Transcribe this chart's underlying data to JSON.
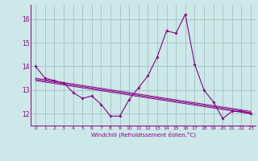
{
  "xlabel": "Windchill (Refroidissement éolien,°C)",
  "x_hours": [
    0,
    1,
    2,
    3,
    4,
    5,
    6,
    7,
    8,
    9,
    10,
    11,
    12,
    13,
    14,
    15,
    16,
    17,
    18,
    19,
    20,
    21,
    22,
    23
  ],
  "main_line": [
    14.0,
    13.5,
    13.4,
    13.3,
    12.9,
    12.65,
    12.75,
    12.4,
    11.9,
    11.9,
    12.6,
    13.1,
    13.6,
    14.4,
    15.5,
    15.4,
    16.2,
    14.1,
    13.0,
    12.5,
    11.8,
    12.1,
    12.1,
    12.0
  ],
  "trend_lines": [
    [
      13.5,
      12.1
    ],
    [
      13.45,
      12.05
    ],
    [
      13.4,
      12.0
    ]
  ],
  "ylim": [
    11.5,
    16.6
  ],
  "yticks": [
    12,
    13,
    14,
    15,
    16
  ],
  "xticks": [
    0,
    1,
    2,
    3,
    4,
    5,
    6,
    7,
    8,
    9,
    10,
    11,
    12,
    13,
    14,
    15,
    16,
    17,
    18,
    19,
    20,
    21,
    22,
    23
  ],
  "line_color": "#880088",
  "bg_color": "#cce8e8",
  "grid_color": "#99bbbb",
  "spine_color": "#880088"
}
